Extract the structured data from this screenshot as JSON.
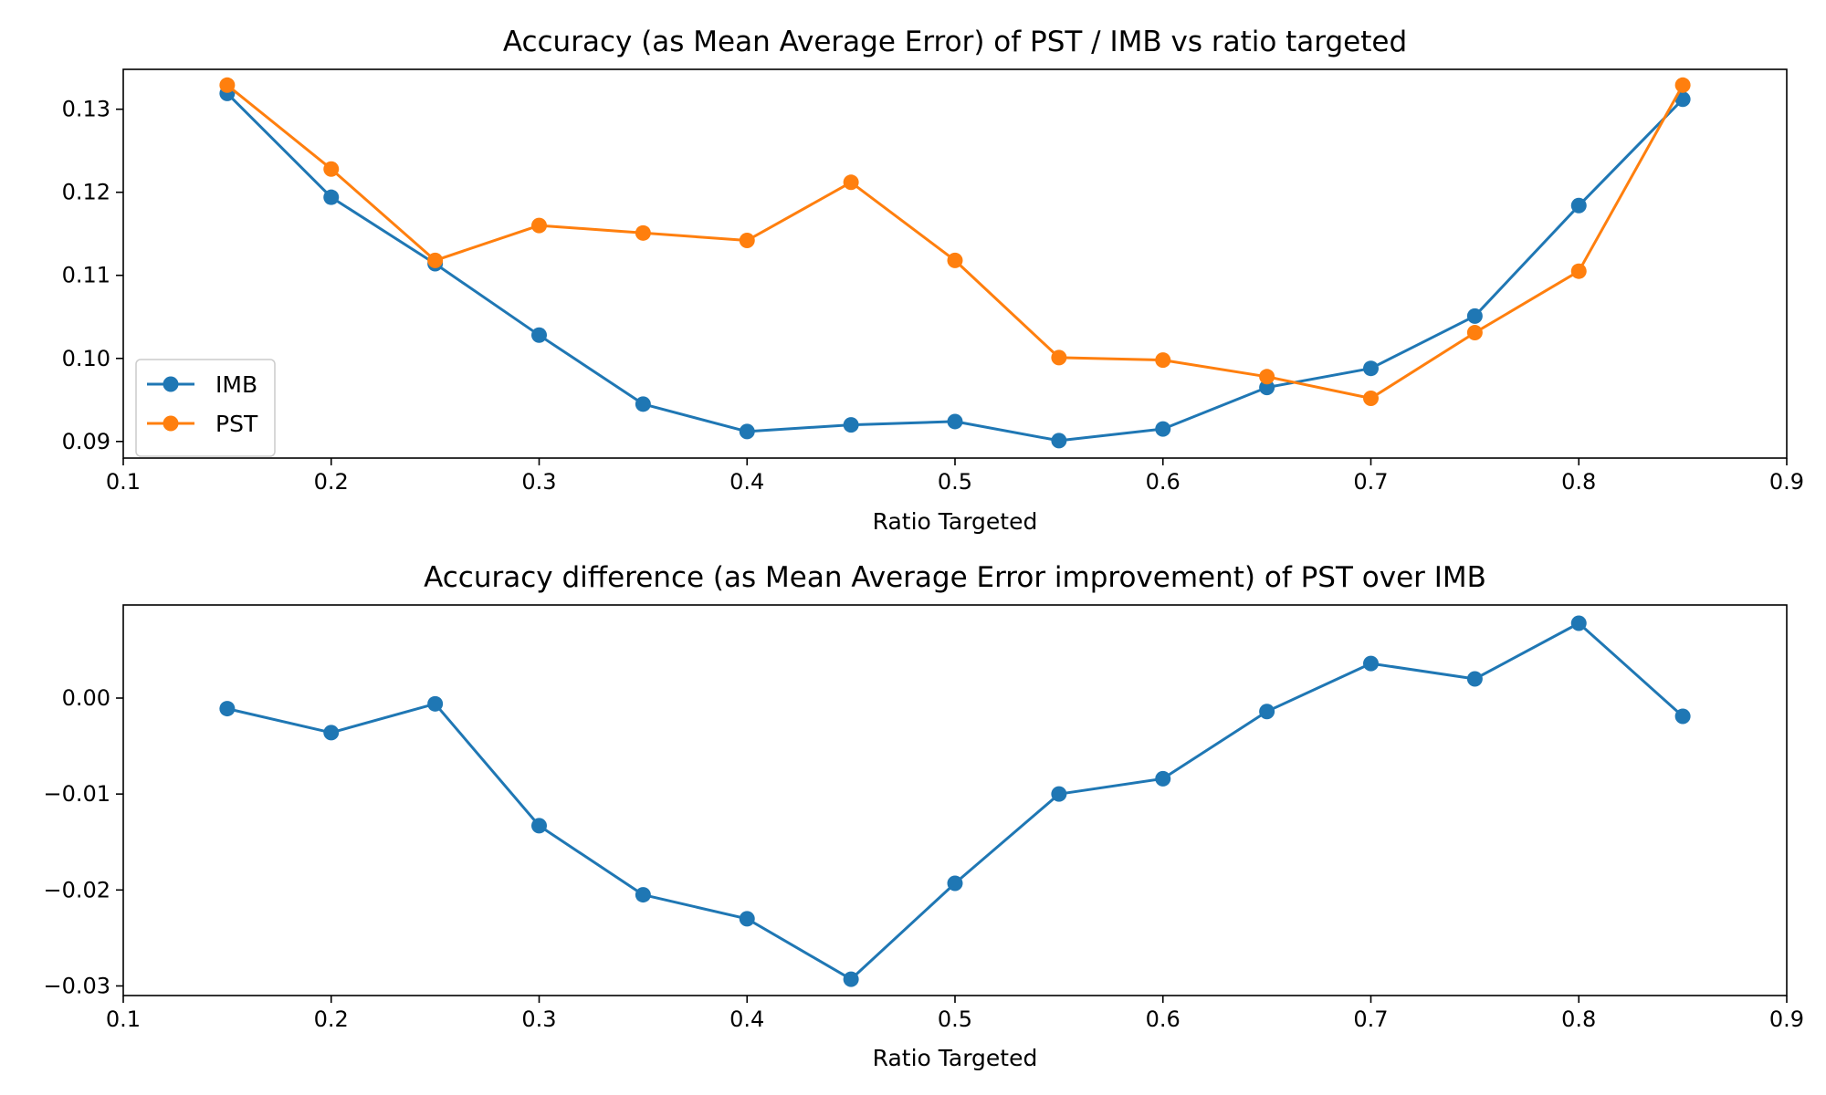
{
  "chart_data": [
    {
      "type": "line",
      "title": "Accuracy (as Mean Average Error) of PST / IMB vs ratio targeted",
      "xlabel": "Ratio Targeted",
      "ylabel": "",
      "xlim": [
        0.1,
        0.9
      ],
      "ylim": [
        0.088,
        0.1348
      ],
      "x_ticks": [
        "0.1",
        "0.2",
        "0.3",
        "0.4",
        "0.5",
        "0.6",
        "0.7",
        "0.8",
        "0.9"
      ],
      "y_ticks": [
        "0.09",
        "0.10",
        "0.11",
        "0.12",
        "0.13"
      ],
      "grid": false,
      "legend_position": "lower-left",
      "x": [
        0.15,
        0.2,
        0.25,
        0.3,
        0.35,
        0.4,
        0.45,
        0.5,
        0.55,
        0.6,
        0.65,
        0.7,
        0.75,
        0.8,
        0.85
      ],
      "series": [
        {
          "name": "IMB",
          "color": "#1f77b4",
          "values": [
            0.1319,
            0.1194,
            0.1114,
            0.1028,
            0.0945,
            0.0912,
            0.092,
            0.0924,
            0.0901,
            0.0915,
            0.0965,
            0.0988,
            0.1051,
            0.1184,
            0.1312
          ]
        },
        {
          "name": "PST",
          "color": "#ff7f0e",
          "values": [
            0.1329,
            0.1228,
            0.1118,
            0.116,
            0.1151,
            0.1142,
            0.1212,
            0.1118,
            0.1001,
            0.0998,
            0.0978,
            0.0952,
            0.1031,
            0.1105,
            0.1329
          ]
        }
      ]
    },
    {
      "type": "line",
      "title": "Accuracy difference (as Mean Average Error improvement) of PST over IMB",
      "xlabel": "Ratio Targeted",
      "ylabel": "",
      "xlim": [
        0.1,
        0.9
      ],
      "ylim": [
        -0.031,
        0.0097
      ],
      "x_ticks": [
        "0.1",
        "0.2",
        "0.3",
        "0.4",
        "0.5",
        "0.6",
        "0.7",
        "0.8",
        "0.9"
      ],
      "y_ticks": [
        "−0.03",
        "−0.02",
        "−0.01",
        "0.00"
      ],
      "grid": false,
      "x": [
        0.15,
        0.2,
        0.25,
        0.3,
        0.35,
        0.4,
        0.45,
        0.5,
        0.55,
        0.6,
        0.65,
        0.7,
        0.75,
        0.8,
        0.85
      ],
      "series": [
        {
          "color": "#1f77b4",
          "values": [
            -0.0011,
            -0.0036,
            -0.0006,
            -0.0133,
            -0.0205,
            -0.023,
            -0.0293,
            -0.0193,
            -0.01,
            -0.0084,
            -0.0014,
            0.0036,
            0.002,
            0.0078,
            -0.0019
          ]
        }
      ]
    }
  ]
}
